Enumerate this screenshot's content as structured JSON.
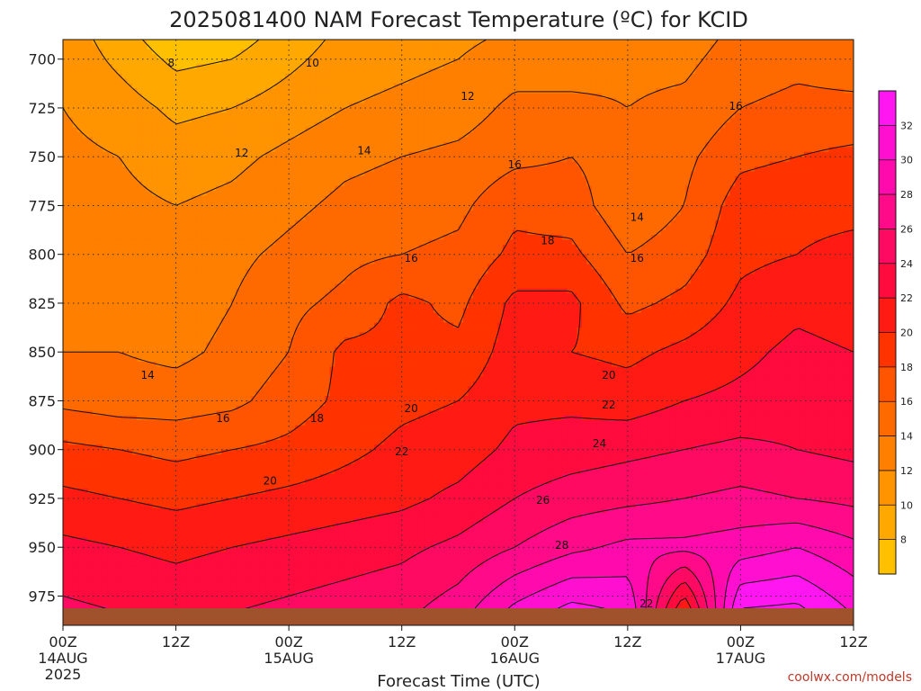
{
  "title": "2025081400 NAM Forecast Temperature (ºC) for KCID",
  "xlabel": "Forecast Time (UTC)",
  "credit": "coolwx.com/models",
  "chart_data": {
    "type": "contour",
    "title": "2025081400 NAM Forecast Temperature (ºC) for KCID",
    "xlabel": "Forecast Time (UTC)",
    "ylabel": "",
    "y_axis": "pressure (hPa), inverted",
    "ylim": [
      990,
      690
    ],
    "xlim_hours": [
      0,
      84
    ],
    "y_ticks": [
      700,
      725,
      750,
      775,
      800,
      825,
      850,
      875,
      900,
      925,
      950,
      975
    ],
    "x_ticks": [
      {
        "hour": 0,
        "label": "00Z",
        "sub": "14AUG",
        "sub2": "2025"
      },
      {
        "hour": 12,
        "label": "12Z",
        "sub": "",
        "sub2": ""
      },
      {
        "hour": 24,
        "label": "00Z",
        "sub": "15AUG",
        "sub2": ""
      },
      {
        "hour": 36,
        "label": "12Z",
        "sub": "",
        "sub2": ""
      },
      {
        "hour": 48,
        "label": "00Z",
        "sub": "16AUG",
        "sub2": ""
      },
      {
        "hour": 60,
        "label": "12Z",
        "sub": "",
        "sub2": ""
      },
      {
        "hour": 72,
        "label": "00Z",
        "sub": "17AUG",
        "sub2": ""
      },
      {
        "hour": 84,
        "label": "12Z",
        "sub": "",
        "sub2": ""
      }
    ],
    "grid": true,
    "contour_interval": 2,
    "colorbar": {
      "levels": [
        6,
        8,
        10,
        12,
        14,
        16,
        18,
        20,
        22,
        24,
        26,
        28,
        30,
        32,
        34
      ],
      "tick_labels": [
        "8",
        "10",
        "12",
        "14",
        "16",
        "18",
        "20",
        "22",
        "24",
        "26",
        "28",
        "30",
        "32"
      ],
      "colors": [
        "#ffc000",
        "#ffa800",
        "#ff9300",
        "#ff7f00",
        "#ff6a00",
        "#ff5500",
        "#ff3300",
        "#ff1a14",
        "#ff0b3e",
        "#ff0a63",
        "#ff0a88",
        "#ff0aac",
        "#ff10d0",
        "#ff16f0"
      ]
    },
    "hours": [
      0,
      6,
      12,
      18,
      24,
      30,
      36,
      42,
      48,
      54,
      60,
      66,
      72,
      78,
      84
    ],
    "levels_hpa": [
      700,
      725,
      750,
      775,
      800,
      825,
      850,
      875,
      900,
      925,
      950,
      975
    ],
    "temperature_c": [
      [
        11.5,
        9.5,
        7.5,
        8.0,
        9.5,
        11.0,
        11.5,
        12.0,
        13.0,
        13.0,
        13.5,
        13.5,
        15.0,
        15.5,
        15.0
      ],
      [
        12.0,
        11.0,
        9.5,
        10.0,
        11.0,
        12.0,
        12.5,
        13.0,
        14.5,
        14.5,
        14.0,
        14.5,
        16.0,
        16.5,
        16.5
      ],
      [
        12.5,
        12.0,
        11.0,
        11.5,
        12.5,
        13.5,
        14.0,
        14.5,
        15.5,
        16.0,
        15.0,
        15.5,
        17.5,
        18.0,
        18.5
      ],
      [
        13.0,
        12.5,
        12.0,
        12.5,
        13.5,
        14.5,
        15.0,
        15.5,
        17.5,
        17.0,
        14.5,
        16.0,
        19.0,
        19.5,
        19.5
      ],
      [
        13.0,
        13.0,
        12.5,
        13.5,
        14.5,
        15.5,
        16.0,
        16.5,
        18.5,
        18.5,
        16.0,
        17.0,
        19.5,
        20.0,
        20.5
      ],
      [
        13.5,
        13.5,
        13.0,
        14.0,
        15.5,
        16.5,
        18.5,
        17.5,
        20.5,
        20.5,
        17.5,
        18.5,
        20.5,
        21.5,
        21.0
      ],
      [
        14.0,
        14.0,
        13.5,
        14.5,
        16.0,
        18.5,
        18.5,
        18.5,
        21.0,
        20.0,
        19.5,
        20.5,
        21.5,
        22.5,
        22.0
      ],
      [
        15.5,
        15.0,
        15.0,
        15.5,
        17.0,
        18.5,
        19.5,
        20.0,
        21.5,
        21.5,
        21.0,
        22.0,
        22.5,
        23.0,
        22.5
      ],
      [
        18.5,
        18.0,
        17.5,
        18.0,
        18.5,
        19.5,
        20.5,
        21.0,
        22.5,
        23.0,
        23.5,
        24.0,
        24.5,
        24.0,
        23.5
      ],
      [
        20.5,
        20.0,
        19.5,
        20.0,
        20.5,
        21.0,
        21.5,
        22.5,
        24.0,
        25.0,
        25.5,
        26.0,
        26.5,
        26.0,
        25.5
      ],
      [
        22.5,
        22.0,
        21.5,
        22.0,
        22.5,
        23.0,
        23.5,
        24.5,
        26.0,
        27.5,
        28.5,
        28.5,
        29.0,
        30.0,
        28.5
      ],
      [
        24.0,
        23.5,
        23.0,
        23.5,
        24.0,
        24.5,
        25.0,
        26.5,
        29.5,
        31.5,
        31.0,
        22.0,
        33.0,
        33.5,
        31.0
      ]
    ],
    "contour_labels": [
      {
        "text": "8",
        "hour": 11.5,
        "hpa": 702
      },
      {
        "text": "10",
        "hour": 26.5,
        "hpa": 702
      },
      {
        "text": "12",
        "hour": 43,
        "hpa": 719
      },
      {
        "text": "16",
        "hour": 71.5,
        "hpa": 724
      },
      {
        "text": "12",
        "hour": 19,
        "hpa": 748
      },
      {
        "text": "14",
        "hour": 32,
        "hpa": 747
      },
      {
        "text": "16",
        "hour": 48,
        "hpa": 754
      },
      {
        "text": "18",
        "hour": 51.5,
        "hpa": 793
      },
      {
        "text": "14",
        "hour": 61,
        "hpa": 781
      },
      {
        "text": "16",
        "hour": 61,
        "hpa": 802
      },
      {
        "text": "16",
        "hour": 37,
        "hpa": 802
      },
      {
        "text": "14",
        "hour": 9,
        "hpa": 862
      },
      {
        "text": "16",
        "hour": 17,
        "hpa": 884
      },
      {
        "text": "18",
        "hour": 27,
        "hpa": 884
      },
      {
        "text": "20",
        "hour": 37,
        "hpa": 879
      },
      {
        "text": "20",
        "hour": 58,
        "hpa": 862
      },
      {
        "text": "22",
        "hour": 58,
        "hpa": 877
      },
      {
        "text": "22",
        "hour": 36,
        "hpa": 901
      },
      {
        "text": "24",
        "hour": 57,
        "hpa": 897
      },
      {
        "text": "20",
        "hour": 22,
        "hpa": 916
      },
      {
        "text": "26",
        "hour": 51,
        "hpa": 926
      },
      {
        "text": "28",
        "hour": 53,
        "hpa": 949
      },
      {
        "text": "22",
        "hour": 62,
        "hpa": 979
      }
    ]
  }
}
